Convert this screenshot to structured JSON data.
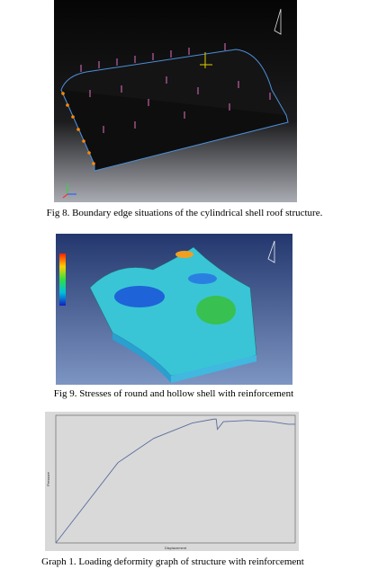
{
  "figures": [
    {
      "caption": "Fig 8. Boundary edge situations of the cylindrical shell roof structure."
    },
    {
      "caption": "Fig 9. Stresses of round and hollow shell with reinforcement"
    }
  ],
  "chart_data": {
    "type": "line",
    "caption": "Graph 1. Loading deformity graph of structure with reinforcement",
    "x_label": "Displacement",
    "y_label": "Pressure",
    "x": [
      0,
      0.26,
      0.41,
      0.57,
      0.66,
      0.67,
      0.675,
      0.7,
      0.8,
      0.9,
      0.97,
      1.0
    ],
    "values": [
      0,
      0.63,
      0.82,
      0.94,
      0.97,
      0.97,
      0.89,
      0.95,
      0.96,
      0.95,
      0.93,
      0.93
    ],
    "xlim": [
      0,
      1
    ],
    "ylim": [
      0,
      1
    ],
    "color": "#5a6d9c"
  }
}
